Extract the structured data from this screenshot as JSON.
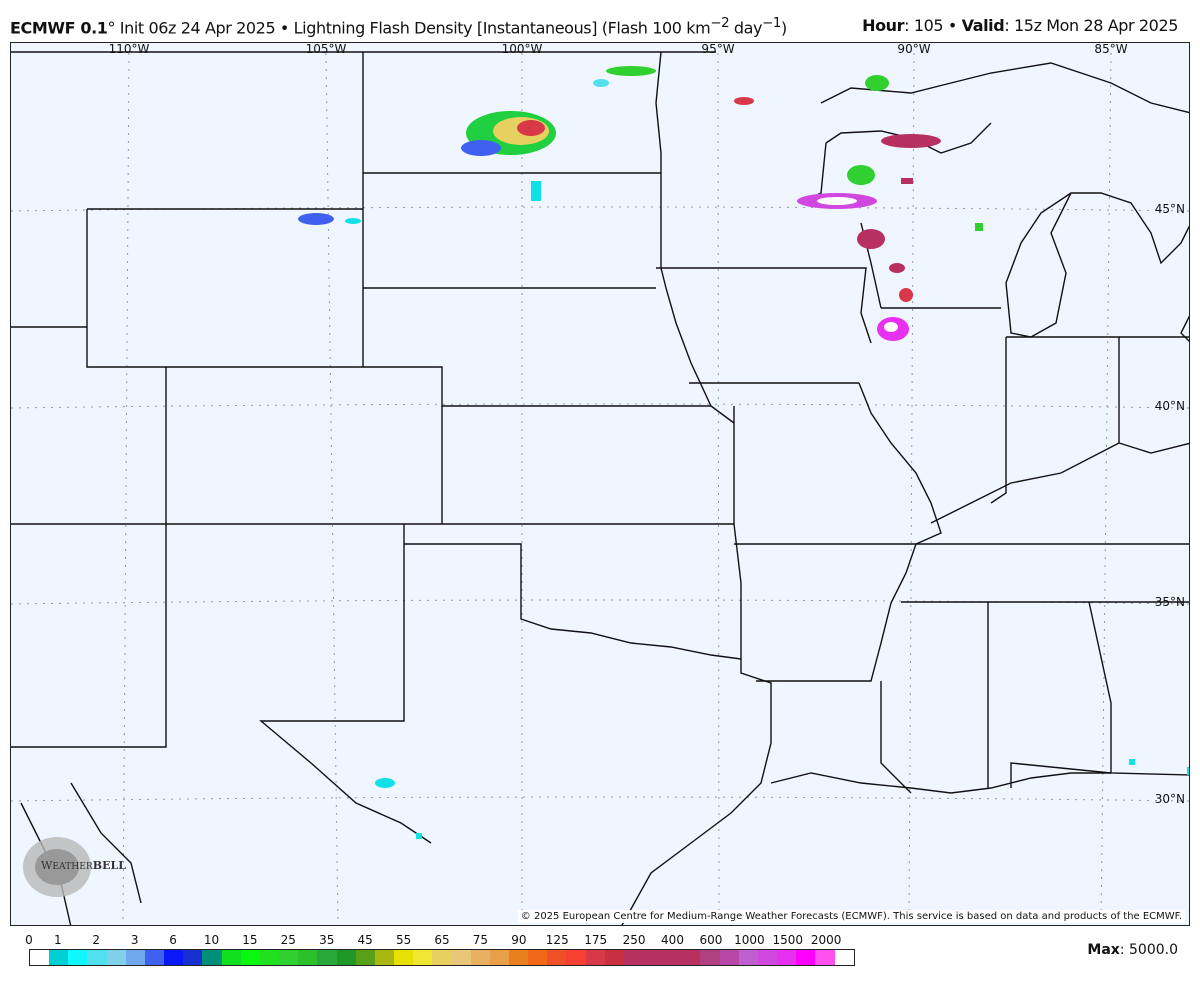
{
  "header": {
    "model": "ECMWF 0.1",
    "init": "° Init 06z 24 Apr 2025 • Lightning Flash Density [Instantaneous] (Flash 100 km",
    "unit_exp1": "−2",
    "unit_mid": " day",
    "unit_exp2": "−1",
    "unit_end": ")",
    "hour_label": "Hour",
    "hour_value": ": 105 • ",
    "valid_label": "Valid",
    "valid_value": ": 15z Mon 28 Apr 2025"
  },
  "map": {
    "lon_labels": [
      "110°W",
      "105°W",
      "100°W",
      "95°W",
      "90°W",
      "85°W"
    ],
    "lat_labels": [
      "45°N",
      "40°N",
      "35°N",
      "30°N"
    ],
    "background": "#f0f6ff",
    "copyright": "© 2025 European Centre for Medium-Range Weather Forecasts (ECMWF). This service is based on data and products of the ECMWF.",
    "logo": "WeatherBELL Analytics LLC"
  },
  "colorbar": {
    "labels": [
      "0",
      "1",
      "2",
      "3",
      "6",
      "10",
      "15",
      "25",
      "35",
      "45",
      "55",
      "65",
      "75",
      "90",
      "125",
      "175",
      "250",
      "400",
      "600",
      "1000",
      "1500",
      "2000"
    ],
    "colors": [
      "#ffffff",
      "#00d0d4",
      "#10f8ff",
      "#50e0ee",
      "#80d0ea",
      "#70a8ec",
      "#4060f0",
      "#0818f8",
      "#1830d0",
      "#008f78",
      "#10e020",
      "#08f810",
      "#20e020",
      "#30d030",
      "#2cc02c",
      "#28a838",
      "#209828",
      "#58a018",
      "#a8b810",
      "#e8e000",
      "#f0e830",
      "#e8d060",
      "#e8c878",
      "#e8b060",
      "#e8a048",
      "#e88020",
      "#f06818",
      "#f05028",
      "#f84030",
      "#d83848",
      "#c83040",
      "#b83060",
      "#b83060",
      "#b83060",
      "#b83060",
      "#b04080",
      "#b848a8",
      "#c060d0",
      "#d048e0",
      "#e830f0",
      "#ff00ff",
      "#ff50f0",
      "#ffffff"
    ],
    "max_label": "Max",
    "max_value": ": 5000.0"
  }
}
